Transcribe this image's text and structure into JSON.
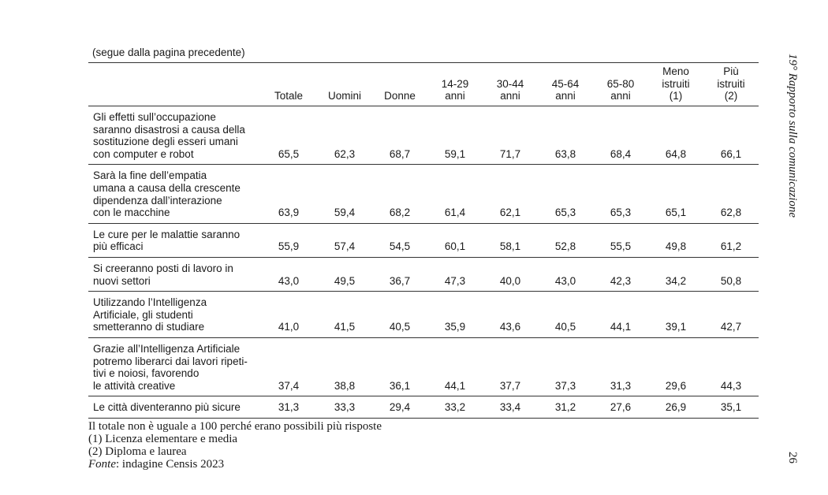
{
  "continuation_note": "(segue dalla pagina precedente)",
  "table": {
    "columns": [
      {
        "lines": [
          "Totale"
        ]
      },
      {
        "lines": [
          "Uomini"
        ]
      },
      {
        "lines": [
          "Donne"
        ]
      },
      {
        "lines": [
          "14-29",
          "anni"
        ]
      },
      {
        "lines": [
          "30-44",
          "anni"
        ]
      },
      {
        "lines": [
          "45-64",
          "anni"
        ]
      },
      {
        "lines": [
          "65-80",
          "anni"
        ]
      },
      {
        "lines": [
          "Meno",
          "istruiti",
          "(1)"
        ]
      },
      {
        "lines": [
          "Più",
          "istruiti",
          "(2)"
        ]
      }
    ],
    "rows": [
      {
        "label": [
          "Gli effetti sull’occupazione",
          "saranno disastrosi a causa della",
          "sostituzione degli esseri umani",
          "con computer e robot"
        ],
        "values": [
          "65,5",
          "62,3",
          "68,7",
          "59,1",
          "71,7",
          "63,8",
          "68,4",
          "64,8",
          "66,1"
        ]
      },
      {
        "label": [
          "Sarà la fine dell’empatia",
          "umana a causa della crescente",
          "dipendenza dall’interazione",
          "con le macchine"
        ],
        "values": [
          "63,9",
          "59,4",
          "68,2",
          "61,4",
          "62,1",
          "65,3",
          "65,3",
          "65,1",
          "62,8"
        ]
      },
      {
        "label": [
          "Le cure per le malattie saranno",
          "più efficaci"
        ],
        "values": [
          "55,9",
          "57,4",
          "54,5",
          "60,1",
          "58,1",
          "52,8",
          "55,5",
          "49,8",
          "61,2"
        ]
      },
      {
        "label": [
          "Si creeranno posti di lavoro in",
          "nuovi settori"
        ],
        "values": [
          "43,0",
          "49,5",
          "36,7",
          "47,3",
          "40,0",
          "43,0",
          "42,3",
          "34,2",
          "50,8"
        ]
      },
      {
        "label": [
          "Utilizzando l’Intelligenza",
          "Artificiale, gli studenti",
          "smetteranno di studiare"
        ],
        "values": [
          "41,0",
          "41,5",
          "40,5",
          "35,9",
          "43,6",
          "40,5",
          "44,1",
          "39,1",
          "42,7"
        ]
      },
      {
        "label": [
          "Grazie all’Intelligenza Artificiale",
          "potremo liberarci dai lavori ripeti-",
          "tivi e noiosi, favorendo",
          "le attività creative"
        ],
        "values": [
          "37,4",
          "38,8",
          "36,1",
          "44,1",
          "37,7",
          "37,3",
          "31,3",
          "29,6",
          "44,3"
        ]
      },
      {
        "label": [
          "Le città diventeranno più sicure"
        ],
        "values": [
          "31,3",
          "33,3",
          "29,4",
          "33,2",
          "33,4",
          "31,2",
          "27,6",
          "26,9",
          "35,1"
        ]
      }
    ]
  },
  "notes": {
    "total_note": "Il totale non è uguale a 100 perché erano possibili più risposte",
    "note_1": "(1) Licenza elementare e media",
    "note_2": "(2) Diploma e laurea",
    "source_label": "Fonte",
    "source_text": ": indagine Censis 2023"
  },
  "running_title": "19° Rapporto sulla comunicazione",
  "page_number": "26"
}
